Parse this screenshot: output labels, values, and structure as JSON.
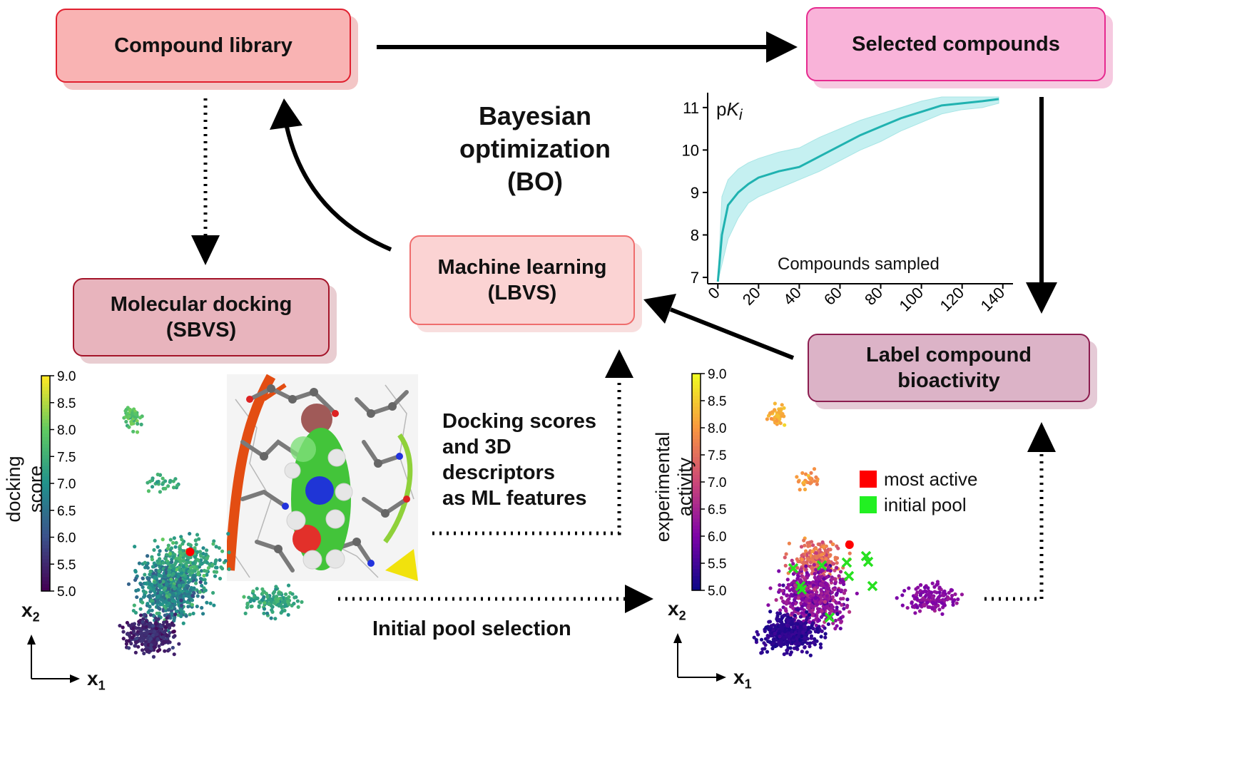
{
  "boxes": {
    "compound_library": "Compound library",
    "selected_compounds": "Selected compounds",
    "molecular_docking_line1": "Molecular docking",
    "molecular_docking_line2": "(SBVS)",
    "machine_learning_line1": "Machine learning",
    "machine_learning_line2": "(LBVS)",
    "label_bioactivity_line1": "Label compound",
    "label_bioactivity_line2": "bioactivity"
  },
  "center_title": {
    "line1": "Bayesian",
    "line2": "optimization",
    "line3": "(BO)"
  },
  "features_text": {
    "line1": "Docking scores",
    "line2": "and 3D",
    "line3": "descriptors",
    "line4": "as ML features"
  },
  "initial_pool_selection": "Initial pool selection",
  "colors": {
    "compound_library_fill": "#f9b3b3",
    "compound_library_border": "#e0202f",
    "selected_fill": "#f9b3d9",
    "selected_border": "#e62a8f",
    "docking_fill": "#e8b4bd",
    "docking_border": "#a4152a",
    "ml_fill": "#fbd3d3",
    "ml_border": "#ef6d6d",
    "label_fill": "#dcb3c7",
    "label_border": "#8c1d4f",
    "pki_line": "#20b2b0",
    "pki_band": "#bfeff0"
  },
  "pki_chart": {
    "chart_data": {
      "type": "line",
      "ylabel_prefix": "p",
      "ylabel_italic": "K",
      "ylabel_sub": "i",
      "xlabel": "Compounds sampled",
      "xticks": [
        "0",
        "20",
        "40",
        "60",
        "80",
        "100",
        "120",
        "140"
      ],
      "yticks": [
        "7",
        "8",
        "9",
        "10",
        "11"
      ],
      "xlim": [
        -5,
        145
      ],
      "ylim": [
        6.85,
        11.35
      ],
      "x": [
        0,
        2,
        5,
        10,
        15,
        20,
        30,
        40,
        50,
        60,
        70,
        80,
        90,
        100,
        110,
        120,
        130,
        138
      ],
      "y": [
        6.9,
        8.0,
        8.7,
        9.0,
        9.2,
        9.35,
        9.5,
        9.6,
        9.85,
        10.1,
        10.35,
        10.55,
        10.75,
        10.9,
        11.05,
        11.1,
        11.15,
        11.2
      ],
      "lower": [
        6.9,
        7.3,
        7.9,
        8.4,
        8.75,
        8.9,
        9.1,
        9.3,
        9.5,
        9.75,
        10.0,
        10.2,
        10.45,
        10.65,
        10.85,
        10.95,
        11.0,
        11.1
      ],
      "upper": [
        6.9,
        8.9,
        9.3,
        9.55,
        9.7,
        9.8,
        9.95,
        10.05,
        10.3,
        10.5,
        10.7,
        10.85,
        11.0,
        11.15,
        11.25,
        11.25,
        11.25,
        11.25
      ]
    }
  },
  "left_scatter": {
    "chart_data": {
      "type": "scatter",
      "colorbar_label": "docking score",
      "colorbar_ticks": [
        "9.0",
        "8.5",
        "8.0",
        "7.5",
        "7.0",
        "6.5",
        "6.0",
        "5.5",
        "5.0"
      ],
      "clim": [
        5.0,
        9.0
      ],
      "colormap": "viridis",
      "highlight": [
        {
          "x": 0.46,
          "y": 0.29,
          "color": "#ff0000"
        }
      ]
    },
    "axis_x": "x",
    "axis_x_sub": "1",
    "axis_y": "x",
    "axis_y_sub": "2"
  },
  "right_scatter": {
    "chart_data": {
      "type": "scatter",
      "colorbar_label": "experimental activity",
      "colorbar_ticks": [
        "9.0",
        "8.5",
        "8.0",
        "7.5",
        "7.0",
        "6.5",
        "6.0",
        "5.5",
        "5.0"
      ],
      "clim": [
        5.0,
        9.0
      ],
      "colormap": "plasma",
      "highlight": [
        {
          "x": 0.48,
          "y": 0.31,
          "color": "#ff0000"
        }
      ],
      "initial_pool_marker": "x",
      "initial_pool_color": "#27e020"
    },
    "legend": {
      "most_active": "most active",
      "initial_pool": "initial pool"
    },
    "axis_x": "x",
    "axis_x_sub": "1",
    "axis_y": "x",
    "axis_y_sub": "2"
  }
}
